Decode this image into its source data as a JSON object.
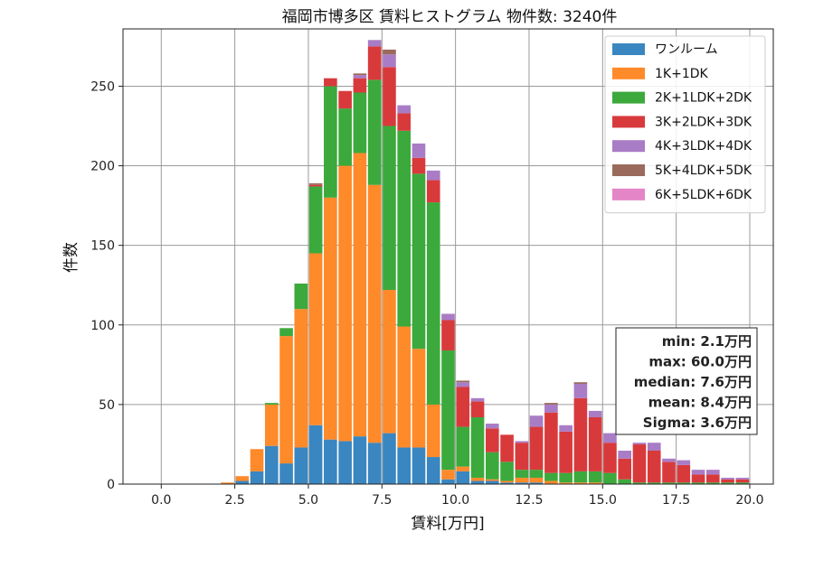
{
  "chart_data": {
    "type": "bar",
    "stacked": true,
    "title": "福岡市博多区 賃料ヒストグラム  物件数: 3240件",
    "xlabel": "賃料[万円]",
    "ylabel": "件数",
    "xlim": [
      -1.3,
      20.8
    ],
    "ylim": [
      0,
      286
    ],
    "xticks": [
      "0.0",
      "2.5",
      "5.0",
      "7.5",
      "10.0",
      "12.5",
      "15.0",
      "17.5",
      "20.0"
    ],
    "xtick_values": [
      0,
      2.5,
      5,
      7.5,
      10,
      12.5,
      15,
      17.5,
      20
    ],
    "yticks": [
      "0",
      "50",
      "100",
      "150",
      "200",
      "250"
    ],
    "ytick_values": [
      0,
      50,
      100,
      150,
      200,
      250
    ],
    "grid": true,
    "legend_position": "top-right",
    "bin_width": 0.5,
    "bin_starts": [
      0,
      0.5,
      1,
      1.5,
      2,
      2.5,
      3,
      3.5,
      4,
      4.5,
      5,
      5.5,
      6,
      6.5,
      7,
      7.5,
      8,
      8.5,
      9,
      9.5,
      10,
      10.5,
      11,
      11.5,
      12,
      12.5,
      13,
      13.5,
      14,
      14.5,
      15,
      15.5,
      16,
      16.5,
      17,
      17.5,
      18,
      18.5,
      19,
      19.5
    ],
    "series": [
      {
        "name": "ワンルーム",
        "color": "#3a86c0",
        "values": [
          0,
          0,
          0,
          0,
          0,
          2,
          8,
          24,
          13,
          23,
          37,
          28,
          27,
          30,
          26,
          32,
          23,
          23,
          17,
          3,
          8,
          2,
          2,
          1,
          1,
          1,
          0,
          0,
          0,
          0,
          0,
          0,
          0,
          0,
          0,
          0,
          0,
          0,
          0,
          0
        ]
      },
      {
        "name": "1K+1DK",
        "color": "#ff8a2a",
        "values": [
          0,
          0,
          0,
          0,
          1,
          3,
          14,
          26,
          80,
          87,
          108,
          152,
          173,
          178,
          162,
          90,
          76,
          62,
          33,
          6,
          3,
          2,
          1,
          1,
          3,
          3,
          2,
          1,
          1,
          1,
          0,
          0,
          0,
          0,
          0,
          0,
          0,
          0,
          0,
          0
        ]
      },
      {
        "name": "2K+1LDK+2DK",
        "color": "#3ca93c",
        "values": [
          0,
          0,
          0,
          0,
          0,
          0,
          0,
          1,
          5,
          16,
          42,
          70,
          36,
          38,
          66,
          103,
          123,
          110,
          127,
          75,
          25,
          38,
          17,
          12,
          5,
          5,
          5,
          6,
          7,
          7,
          7,
          3,
          1,
          1,
          1,
          1,
          1,
          1,
          1,
          1
        ]
      },
      {
        "name": "3K+2LDK+3DK",
        "color": "#d83a3c",
        "values": [
          0,
          0,
          0,
          0,
          0,
          0,
          0,
          0,
          0,
          0,
          1,
          5,
          11,
          9,
          21,
          37,
          11,
          10,
          14,
          19,
          25,
          10,
          15,
          17,
          17,
          27,
          38,
          26,
          46,
          34,
          19,
          13,
          24,
          20,
          13,
          11,
          5,
          5,
          2,
          2
        ]
      },
      {
        "name": "4K+3LDK+4DK",
        "color": "#a97cc6",
        "values": [
          0,
          0,
          0,
          0,
          0,
          0,
          0,
          0,
          0,
          0,
          0,
          0,
          0,
          2,
          4,
          8,
          5,
          9,
          6,
          4,
          3,
          2,
          3,
          0,
          1,
          7,
          5,
          4,
          9,
          4,
          6,
          5,
          1,
          5,
          2,
          3,
          3,
          3,
          1,
          1
        ]
      },
      {
        "name": "5K+4LDK+5DK",
        "color": "#9a6a5c",
        "values": [
          0,
          0,
          0,
          0,
          0,
          0,
          0,
          0,
          0,
          0,
          1,
          0,
          0,
          1,
          0,
          3,
          0,
          0,
          0,
          0,
          1,
          0,
          0,
          0,
          0,
          0,
          1,
          0,
          1,
          0,
          0,
          0,
          0,
          0,
          0,
          0,
          0,
          0,
          0,
          0
        ]
      },
      {
        "name": "6K+5LDK+6DK",
        "color": "#e485c8",
        "values": [
          0,
          0,
          0,
          0,
          0,
          0,
          0,
          0,
          0,
          0,
          0,
          0,
          0,
          0,
          0,
          0,
          0,
          0,
          0,
          0,
          0,
          0,
          0,
          0,
          0,
          0,
          0,
          0,
          0,
          0,
          0,
          0,
          0,
          0,
          0,
          0,
          0,
          0,
          0,
          0
        ]
      }
    ],
    "annotations": [
      "min: 2.1万円",
      "max: 60.0万円",
      "median: 7.6万円",
      "mean: 8.4万円",
      "Sigma: 3.6万円"
    ]
  }
}
